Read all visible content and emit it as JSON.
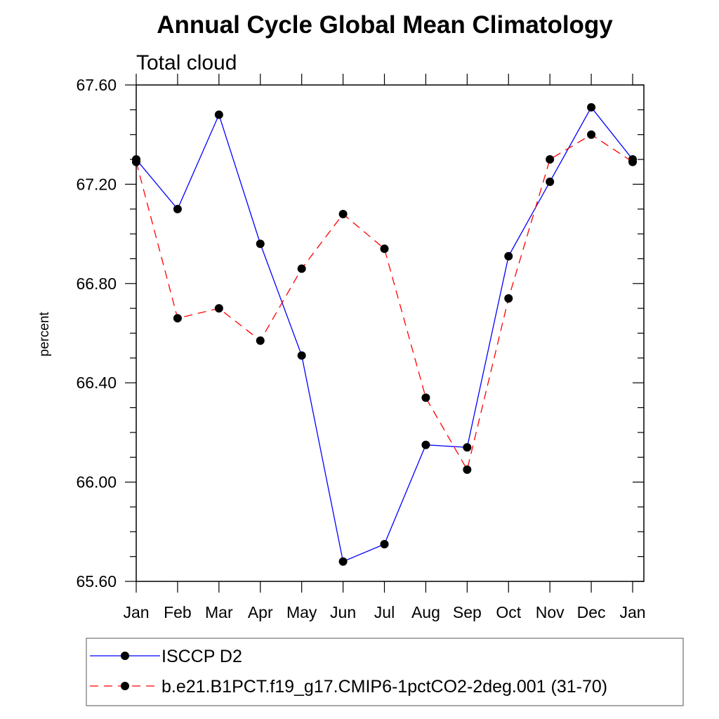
{
  "chart_data": {
    "type": "line",
    "title": "Annual Cycle Global Mean Climatology",
    "subtitle": "Total cloud",
    "xlabel": "",
    "ylabel": "percent",
    "ylim": [
      65.6,
      67.6
    ],
    "y_ticks": [
      "65.60",
      "66.00",
      "66.40",
      "66.80",
      "67.20",
      "67.60"
    ],
    "categories": [
      "Jan",
      "Feb",
      "Mar",
      "Apr",
      "May",
      "Jun",
      "Jul",
      "Aug",
      "Sep",
      "Oct",
      "Nov",
      "Dec",
      "Jan"
    ],
    "series": [
      {
        "name": "ISCCP D2",
        "color": "#0000ff",
        "style": "solid",
        "values": [
          67.3,
          67.1,
          67.48,
          66.96,
          66.51,
          65.68,
          65.75,
          66.15,
          66.14,
          66.91,
          67.21,
          67.51,
          67.3
        ]
      },
      {
        "name": "b.e21.B1PCT.f19_g17.CMIP6-1pctCO2-2deg.001 (31-70)",
        "color": "#ff0000",
        "style": "dashed",
        "values": [
          67.29,
          66.66,
          66.7,
          66.57,
          66.86,
          67.08,
          66.94,
          66.34,
          66.05,
          66.74,
          67.3,
          67.4,
          67.29
        ]
      }
    ]
  }
}
